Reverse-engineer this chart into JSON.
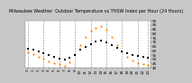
{
  "title": "Milwaukee Weather  Outdoor Temperature vs THSW Index per Hour (24 Hours)",
  "background_color": "#c8c8c8",
  "plot_bg_color": "#ffffff",
  "grid_color": "#888888",
  "temp_color": "#cc0000",
  "thsw_color": "#ff8800",
  "black_color": "#000000",
  "hours": [
    0,
    1,
    2,
    3,
    4,
    5,
    6,
    7,
    8,
    9,
    10,
    11,
    12,
    13,
    14,
    15,
    16,
    17,
    18,
    19,
    20,
    21,
    22,
    23
  ],
  "temp_values": [
    62,
    61,
    59,
    57,
    55,
    53,
    51,
    50,
    52,
    55,
    61,
    64,
    68,
    71,
    72,
    70,
    67,
    63,
    59,
    57,
    55,
    54,
    53,
    52
  ],
  "thsw_values": [
    58,
    56,
    53,
    51,
    48,
    46,
    44,
    42,
    47,
    56,
    67,
    76,
    83,
    87,
    89,
    85,
    76,
    67,
    59,
    53,
    49,
    46,
    44,
    43
  ],
  "xlim": [
    -0.5,
    23.5
  ],
  "ylim": [
    40,
    95
  ],
  "yticks": [
    40,
    45,
    50,
    55,
    60,
    65,
    70,
    75,
    80,
    85,
    90,
    95
  ],
  "ytick_labels": [
    "40",
    "45",
    "50",
    "55",
    "60",
    "65",
    "70",
    "75",
    "80",
    "85",
    "90",
    "95"
  ],
  "xticks": [
    0,
    1,
    2,
    3,
    4,
    5,
    6,
    7,
    8,
    9,
    10,
    11,
    12,
    13,
    14,
    15,
    16,
    17,
    18,
    19,
    20,
    21,
    22,
    23
  ],
  "xtick_labels": [
    "0",
    "1",
    "2",
    "3",
    "4",
    "5",
    "6",
    "7",
    "8",
    "9",
    "10",
    "11",
    "12",
    "13",
    "14",
    "15",
    "16",
    "17",
    "18",
    "19",
    "20",
    "21",
    "22",
    "23"
  ],
  "grid_hours": [
    0,
    3,
    6,
    9,
    12,
    15,
    18,
    21,
    23
  ],
  "title_fontsize": 3.5,
  "tick_fontsize": 3.0,
  "dot_size": 2.5
}
